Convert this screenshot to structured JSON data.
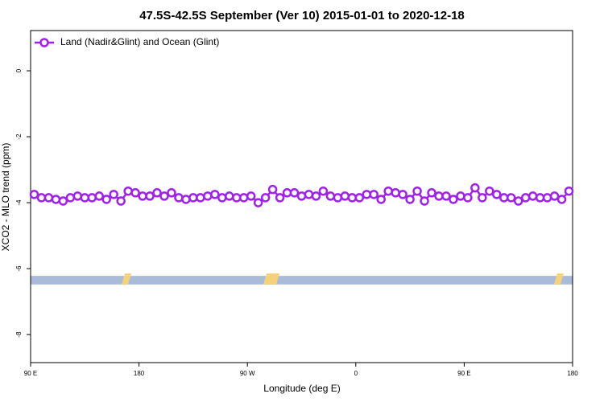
{
  "chart_data": {
    "type": "line",
    "title": "47.5S-42.5S September (Ver 10)   2015-01-01 to 2020-12-18",
    "xlabel": "Longitude (deg E)",
    "ylabel": "XCO2 - MLO trend (ppm)",
    "xlim": [
      90,
      540
    ],
    "ylim": [
      -8.85,
      1.22
    ],
    "xticks": [
      {
        "value": 90,
        "label": "90 E"
      },
      180,
      {
        "value": 270,
        "label": "90 W"
      },
      {
        "value": 360,
        "label": "0"
      },
      {
        "value": 450,
        "label": "90 E"
      },
      {
        "value": 540,
        "label": "180"
      }
    ],
    "yticks": [
      0,
      -2,
      -4,
      -6,
      -8
    ],
    "grid": false,
    "legend": "top-left",
    "mask_band": [
      -6.22,
      -6.48
    ],
    "mask_color": "#a9bbd8",
    "x": [
      93,
      99,
      105,
      111,
      117,
      123,
      129,
      135,
      141,
      147,
      153,
      159,
      165,
      171,
      177,
      183,
      189,
      195,
      201,
      207,
      213,
      219,
      225,
      231,
      237,
      243,
      249,
      255,
      261,
      267,
      273,
      279,
      285,
      291,
      297,
      303,
      309,
      315,
      321,
      327,
      333,
      339,
      345,
      351,
      357,
      363,
      369,
      375,
      381,
      387,
      393,
      399,
      405,
      411,
      417,
      423,
      429,
      435,
      441,
      447,
      453,
      459,
      465,
      471,
      477,
      483,
      489,
      495,
      501,
      507,
      513,
      519,
      525,
      531,
      537
    ],
    "series": [
      {
        "name": "Land (Nadir&Glint) and Ocean (Glint)",
        "color": "#a020f0",
        "values": [
          -3.75,
          -3.85,
          -3.85,
          -3.9,
          -3.95,
          -3.85,
          -3.8,
          -3.85,
          -3.85,
          -3.8,
          -3.9,
          -3.75,
          -3.95,
          -3.65,
          -3.7,
          -3.8,
          -3.8,
          -3.7,
          -3.8,
          -3.7,
          -3.85,
          -3.9,
          -3.85,
          -3.85,
          -3.8,
          -3.75,
          -3.85,
          -3.8,
          -3.85,
          -3.85,
          -3.8,
          -4.0,
          -3.85,
          -3.6,
          -3.85,
          -3.7,
          -3.7,
          -3.8,
          -3.75,
          -3.8,
          -3.65,
          -3.8,
          -3.85,
          -3.8,
          -3.85,
          -3.85,
          -3.75,
          -3.75,
          -3.9,
          -3.65,
          -3.7,
          -3.75,
          -3.9,
          -3.65,
          -3.95,
          -3.7,
          -3.8,
          -3.8,
          -3.9,
          -3.8,
          -3.85,
          -3.55,
          -3.85,
          -3.65,
          -3.75,
          -3.85,
          -3.85,
          -3.95,
          -3.85,
          -3.8,
          -3.85,
          -3.85,
          -3.8,
          -3.9,
          -3.65
        ]
      }
    ]
  }
}
